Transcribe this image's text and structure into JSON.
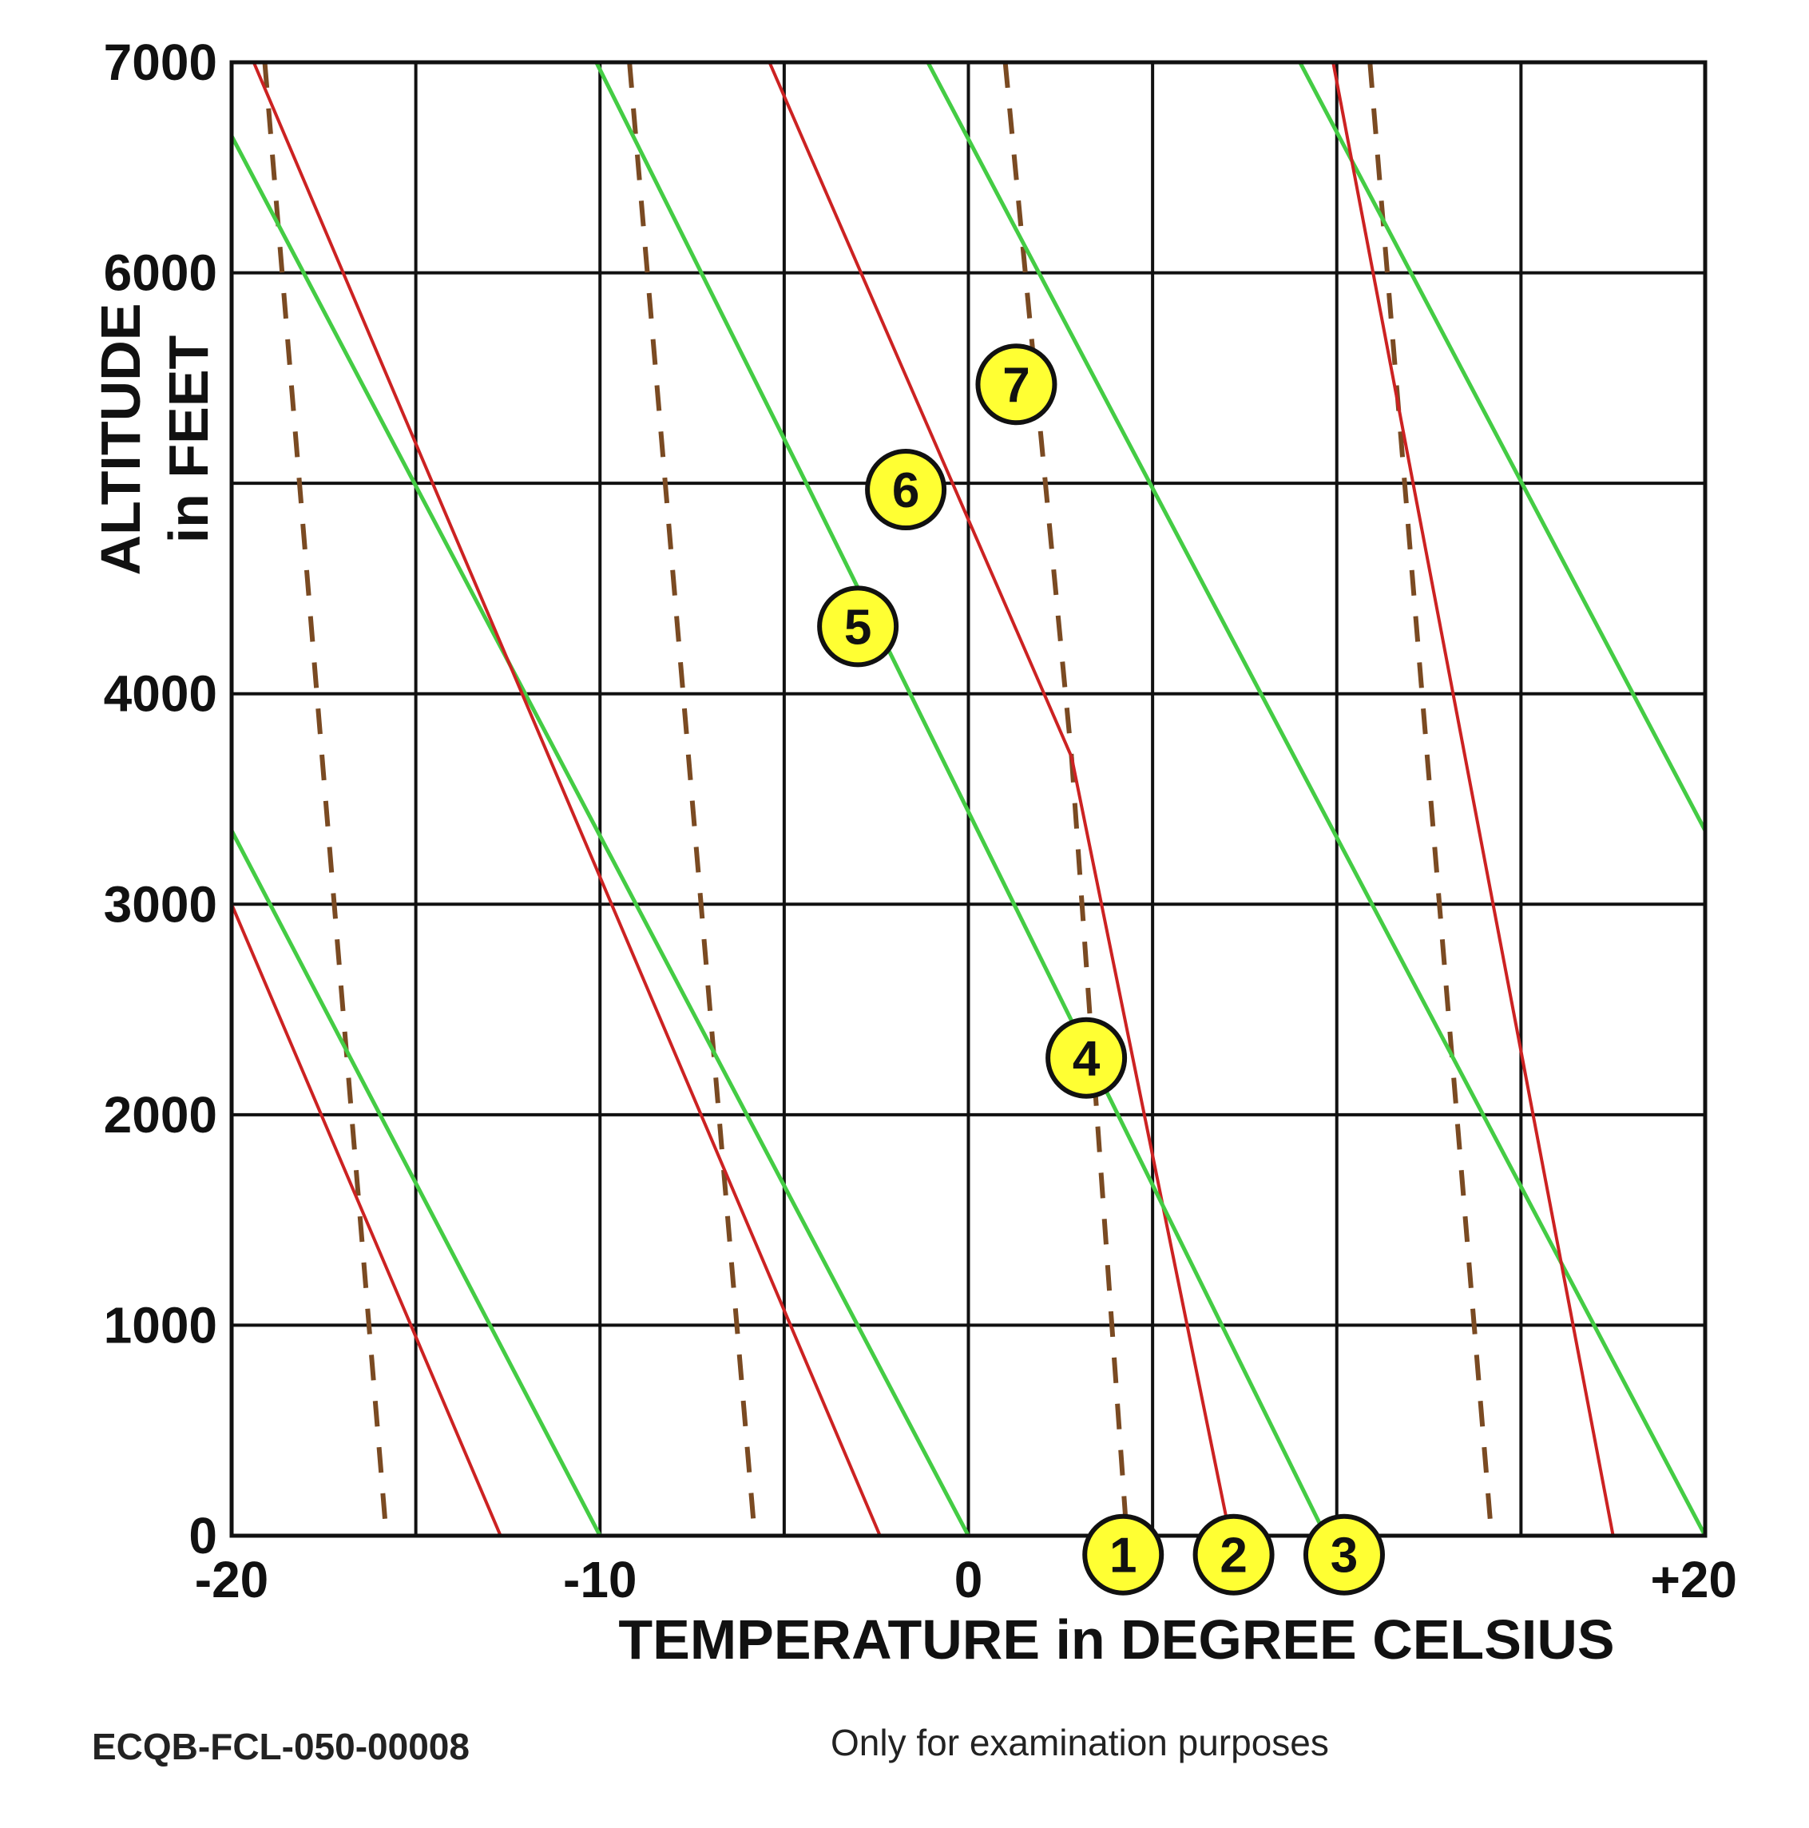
{
  "chart_data": {
    "type": "line",
    "xlabel": "TEMPERATURE in DEGREE CELSIUS",
    "ylabel_line1": "ALTITUDE",
    "ylabel_line2": "in FEET",
    "xlim": [
      -20,
      20
    ],
    "ylim": [
      0,
      7000
    ],
    "x_ticks": [
      -20,
      -10,
      0,
      20
    ],
    "x_tick_labels": [
      "-20",
      "-10",
      "0",
      "+20"
    ],
    "y_ticks": [
      0,
      1000,
      2000,
      3000,
      4000,
      6000,
      7000
    ],
    "y_tick_labels": [
      "0",
      "1000",
      "2000",
      "3000",
      "4000",
      "6000",
      "7000"
    ],
    "grid": true,
    "grid_x_step": 5,
    "grid_y_step": 1000,
    "colors": {
      "red": "#cc2222",
      "green": "#44cc44",
      "dashed": "#7a4a22",
      "marker_fill": "#ffff33",
      "grid": "#111111"
    },
    "background_lines": {
      "red": [
        [
          [
            -20,
            3000
          ],
          [
            -12.7,
            0
          ]
        ],
        [
          [
            -19.4,
            7000
          ],
          [
            -2.4,
            0
          ]
        ],
        [
          [
            -5.4,
            7000
          ],
          [
            2.8,
            3700
          ]
        ],
        [
          [
            9.9,
            7000
          ],
          [
            17.5,
            0
          ]
        ]
      ],
      "green": [
        [
          [
            -20,
            3350
          ],
          [
            -10,
            0
          ]
        ],
        [
          [
            -20,
            6650
          ],
          [
            0,
            0
          ]
        ],
        [
          [
            -10.1,
            7000
          ],
          [
            -4.4,
            5000
          ]
        ],
        [
          [
            -1.1,
            7000
          ],
          [
            20,
            0
          ]
        ],
        [
          [
            9,
            7000
          ],
          [
            20,
            3350
          ]
        ]
      ],
      "dashed": [
        [
          [
            -19.1,
            7000
          ],
          [
            -15.8,
            0
          ]
        ],
        [
          [
            -9.2,
            7000
          ],
          [
            -5.8,
            0
          ]
        ],
        [
          [
            1.0,
            7000
          ],
          [
            2.8,
            3700
          ]
        ],
        [
          [
            10.9,
            7000
          ],
          [
            14.2,
            0
          ]
        ]
      ]
    },
    "series": [
      {
        "label": "1",
        "kind": "dashed",
        "points": [
          [
            2.8,
            3700
          ],
          [
            4.3,
            0
          ]
        ]
      },
      {
        "label": "2",
        "kind": "red",
        "points": [
          [
            2.8,
            3700
          ],
          [
            7.1,
            0
          ]
        ]
      },
      {
        "label": "3",
        "kind": "green",
        "points": [
          [
            -4.4,
            5000
          ],
          [
            9.7,
            0
          ]
        ]
      }
    ],
    "markers": [
      {
        "label": "1",
        "x": 4.2,
        "y": -90
      },
      {
        "label": "2",
        "x": 7.2,
        "y": -90
      },
      {
        "label": "3",
        "x": 10.2,
        "y": -90
      },
      {
        "label": "4",
        "x": 3.2,
        "y": 2270
      },
      {
        "label": "5",
        "x": -3.0,
        "y": 4320
      },
      {
        "label": "6",
        "x": -1.7,
        "y": 4970
      },
      {
        "label": "7",
        "x": 1.3,
        "y": 5470
      }
    ]
  },
  "footer": {
    "ref_code": "ECQB-FCL-050-00008",
    "disclaimer": "Only for examination purposes"
  }
}
